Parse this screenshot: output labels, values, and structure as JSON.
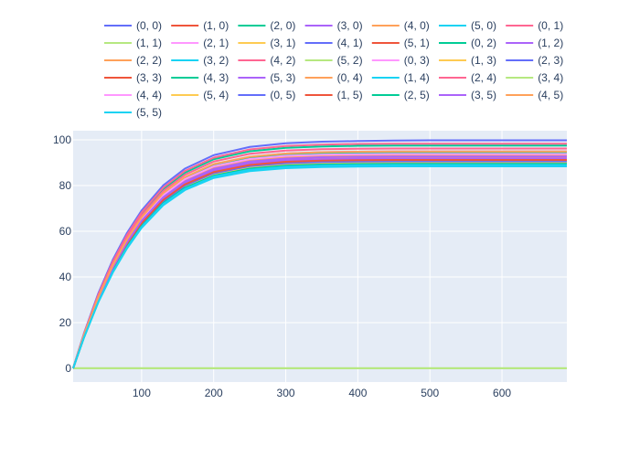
{
  "chart_data": {
    "type": "line",
    "title": "",
    "xlabel": "",
    "ylabel": "",
    "grid": true,
    "legend_position": "top",
    "background_color": "#E5ECF6",
    "grid_color": "#FFFFFF",
    "axis_text_color": "#2a3f5f",
    "xlim": [
      5,
      690
    ],
    "ylim": [
      -6,
      104
    ],
    "x_ticks": [
      100,
      200,
      300,
      400,
      500,
      600
    ],
    "y_ticks": [
      0,
      20,
      40,
      60,
      80,
      100
    ],
    "x": [
      5,
      10,
      20,
      40,
      60,
      80,
      100,
      130,
      160,
      200,
      250,
      300,
      350,
      400,
      450,
      500,
      550,
      600,
      650,
      690
    ],
    "x_tick_labels": [
      "100",
      "200",
      "300",
      "400",
      "500",
      "600"
    ],
    "y_tick_labels": [
      "0",
      "20",
      "40",
      "60",
      "80",
      "100"
    ],
    "series": [
      {
        "name": "(0, 0)",
        "color": "#636efa",
        "values": [
          0.0,
          5.2,
          15.3,
          32.9,
          47.5,
          59.4,
          69.1,
          80.1,
          87.4,
          93.3,
          96.9,
          98.5,
          99.2,
          99.5,
          99.7,
          99.8,
          99.8,
          99.8,
          99.8,
          99.8
        ]
      },
      {
        "name": "(1, 0)",
        "color": "#EF553B",
        "values": [
          0.0,
          4.8,
          14.1,
          30.4,
          44.0,
          55.2,
          64.5,
          74.8,
          81.7,
          87.2,
          90.3,
          91.6,
          92.1,
          92.3,
          92.4,
          92.4,
          92.4,
          92.4,
          92.4,
          92.4
        ]
      },
      {
        "name": "(2, 0)",
        "color": "#00cc96",
        "values": [
          0.0,
          5.0,
          14.8,
          31.9,
          46.1,
          57.9,
          67.6,
          78.4,
          85.6,
          91.5,
          95.0,
          96.5,
          97.1,
          97.4,
          97.5,
          97.5,
          97.5,
          97.5,
          97.5,
          97.5
        ]
      },
      {
        "name": "(3, 0)",
        "color": "#ab63fa",
        "values": [
          0.0,
          4.9,
          14.5,
          31.2,
          45.1,
          56.6,
          66.1,
          76.6,
          83.6,
          89.2,
          92.5,
          94.0,
          94.6,
          94.8,
          94.9,
          94.9,
          94.9,
          94.9,
          94.9,
          94.9
        ]
      },
      {
        "name": "(4, 0)",
        "color": "#FFA15A",
        "values": [
          0.0,
          4.6,
          13.6,
          29.4,
          42.5,
          53.4,
          62.4,
          72.4,
          79.1,
          84.5,
          87.6,
          88.9,
          89.4,
          89.6,
          89.7,
          89.7,
          89.7,
          89.7,
          89.7,
          89.7
        ]
      },
      {
        "name": "(5, 0)",
        "color": "#19d3f3",
        "values": [
          0.0,
          4.7,
          13.9,
          29.9,
          43.2,
          54.2,
          63.4,
          73.5,
          80.3,
          85.8,
          88.9,
          90.2,
          90.7,
          90.9,
          91.0,
          91.0,
          91.0,
          91.0,
          91.0,
          91.0
        ]
      },
      {
        "name": "(0, 1)",
        "color": "#FF6692",
        "values": [
          0.0,
          5.1,
          15.0,
          32.3,
          46.7,
          58.5,
          68.2,
          79.1,
          86.4,
          92.2,
          95.8,
          97.3,
          97.9,
          98.2,
          98.3,
          98.3,
          98.3,
          98.3,
          98.3,
          98.3
        ]
      },
      {
        "name": "(1, 1)",
        "color": "#B6E880",
        "values": [
          0.0,
          0.05,
          0.05,
          0.05,
          0.05,
          0.05,
          0.05,
          0.05,
          0.05,
          0.05,
          0.05,
          0.05,
          0.05,
          0.05,
          0.05,
          0.05,
          0.05,
          0.05,
          0.05,
          0.05
        ]
      },
      {
        "name": "(2, 1)",
        "color": "#FF97FF",
        "values": [
          0.0,
          4.9,
          14.4,
          30.9,
          44.7,
          56.1,
          65.5,
          75.9,
          82.8,
          88.4,
          91.7,
          93.1,
          93.7,
          93.9,
          94.0,
          94.0,
          94.0,
          94.0,
          94.0,
          94.0
        ]
      },
      {
        "name": "(3, 1)",
        "color": "#FECB52",
        "values": [
          0.0,
          4.6,
          13.5,
          29.1,
          42.1,
          52.8,
          61.8,
          71.7,
          78.3,
          83.7,
          86.8,
          88.1,
          88.6,
          88.8,
          88.9,
          88.9,
          88.9,
          88.9,
          88.9,
          88.9
        ]
      },
      {
        "name": "(4, 1)",
        "color": "#636efa",
        "values": [
          0.0,
          4.8,
          14.2,
          30.6,
          44.3,
          55.5,
          64.9,
          75.2,
          82.1,
          87.7,
          90.9,
          92.3,
          92.8,
          93.0,
          93.1,
          93.1,
          93.1,
          93.1,
          93.1,
          93.1
        ]
      },
      {
        "name": "(5, 1)",
        "color": "#EF553B",
        "values": [
          0.0,
          4.7,
          13.8,
          29.8,
          43.0,
          54.0,
          63.1,
          73.2,
          80.0,
          85.4,
          88.5,
          89.8,
          90.3,
          90.5,
          90.6,
          90.6,
          90.6,
          90.6,
          90.6,
          90.6
        ]
      },
      {
        "name": "(0, 2)",
        "color": "#00cc96",
        "values": [
          0.0,
          4.9,
          14.4,
          31.0,
          44.8,
          56.2,
          65.7,
          76.1,
          83.0,
          88.6,
          91.9,
          93.3,
          93.9,
          94.1,
          94.2,
          94.2,
          94.2,
          94.2,
          94.2,
          94.2
        ]
      },
      {
        "name": "(1, 2)",
        "color": "#ab63fa",
        "values": [
          0.0,
          4.8,
          14.0,
          30.3,
          43.8,
          55.0,
          64.2,
          74.4,
          81.2,
          86.7,
          89.9,
          91.2,
          91.7,
          91.9,
          92.0,
          92.0,
          92.0,
          92.0,
          92.0,
          92.0
        ]
      },
      {
        "name": "(2, 2)",
        "color": "#FFA15A",
        "values": [
          0.0,
          4.8,
          14.1,
          30.5,
          44.1,
          55.3,
          64.6,
          74.9,
          81.8,
          87.3,
          90.5,
          91.8,
          92.3,
          92.5,
          92.6,
          92.6,
          92.6,
          92.6,
          92.6,
          92.6
        ]
      },
      {
        "name": "(3, 2)",
        "color": "#19d3f3",
        "values": [
          0.0,
          4.7,
          13.8,
          29.8,
          43.0,
          54.0,
          63.0,
          73.1,
          79.9,
          85.3,
          88.4,
          89.7,
          90.2,
          90.4,
          90.5,
          90.5,
          90.5,
          90.5,
          90.5,
          90.5
        ]
      },
      {
        "name": "(4, 2)",
        "color": "#FF6692",
        "values": [
          0.0,
          5.0,
          14.6,
          31.6,
          45.7,
          57.3,
          66.9,
          77.6,
          84.7,
          90.5,
          93.9,
          95.3,
          95.9,
          96.1,
          96.2,
          96.2,
          96.2,
          96.2,
          96.2,
          96.2
        ]
      },
      {
        "name": "(5, 2)",
        "color": "#B6E880",
        "values": [
          0.0,
          0.05,
          0.05,
          0.05,
          0.05,
          0.05,
          0.05,
          0.05,
          0.05,
          0.05,
          0.05,
          0.05,
          0.05,
          0.05,
          0.05,
          0.05,
          0.05,
          0.05,
          0.05,
          0.05
        ]
      },
      {
        "name": "(0, 3)",
        "color": "#FF97FF",
        "values": [
          0.0,
          4.7,
          13.9,
          30.0,
          43.4,
          54.4,
          63.6,
          73.8,
          80.6,
          86.0,
          89.2,
          90.5,
          91.0,
          91.2,
          91.3,
          91.3,
          91.3,
          91.3,
          91.3,
          91.3
        ]
      },
      {
        "name": "(1, 3)",
        "color": "#FECB52",
        "values": [
          0.0,
          4.7,
          13.7,
          29.6,
          42.8,
          53.7,
          62.8,
          72.8,
          79.5,
          85.0,
          88.0,
          89.3,
          89.8,
          90.0,
          90.1,
          90.1,
          90.1,
          90.1,
          90.1,
          90.1
        ]
      },
      {
        "name": "(2, 3)",
        "color": "#636efa",
        "values": [
          0.0,
          4.7,
          13.9,
          30.0,
          43.3,
          54.3,
          63.5,
          73.7,
          80.4,
          85.9,
          89.0,
          90.3,
          90.8,
          91.0,
          91.1,
          91.1,
          91.1,
          91.1,
          91.1,
          91.1
        ]
      },
      {
        "name": "(3, 3)",
        "color": "#EF553B",
        "values": [
          0.0,
          4.7,
          13.8,
          29.9,
          43.2,
          54.1,
          63.3,
          73.4,
          80.2,
          85.6,
          88.7,
          90.0,
          90.5,
          90.7,
          90.8,
          90.8,
          90.8,
          90.8,
          90.8,
          90.8
        ]
      },
      {
        "name": "(4, 3)",
        "color": "#00cc96",
        "values": [
          0.0,
          4.6,
          13.6,
          29.3,
          42.4,
          53.2,
          62.2,
          72.2,
          78.8,
          84.2,
          87.3,
          88.6,
          89.1,
          89.3,
          89.4,
          89.4,
          89.4,
          89.4,
          89.4,
          89.4
        ]
      },
      {
        "name": "(5, 3)",
        "color": "#ab63fa",
        "values": [
          0.0,
          4.8,
          14.0,
          30.2,
          43.7,
          54.8,
          64.0,
          74.2,
          81.1,
          86.6,
          89.7,
          91.0,
          91.5,
          91.7,
          91.8,
          91.8,
          91.8,
          91.8,
          91.8,
          91.8
        ]
      },
      {
        "name": "(0, 4)",
        "color": "#FFA15A",
        "values": [
          0.0,
          4.8,
          14.2,
          30.7,
          44.4,
          55.7,
          65.0,
          75.4,
          82.3,
          87.9,
          91.1,
          92.5,
          93.0,
          93.2,
          93.3,
          93.3,
          93.3,
          93.3,
          93.3,
          93.3
        ]
      },
      {
        "name": "(1, 4)",
        "color": "#19d3f3",
        "values": [
          0.0,
          4.6,
          13.4,
          29.0,
          41.9,
          52.6,
          61.5,
          71.4,
          78.0,
          83.3,
          86.3,
          87.6,
          88.1,
          88.3,
          88.4,
          88.4,
          88.4,
          88.4,
          88.4,
          88.4
        ]
      },
      {
        "name": "(2, 4)",
        "color": "#FF6692",
        "values": [
          0.0,
          4.7,
          13.8,
          29.8,
          43.1,
          54.1,
          63.2,
          73.3,
          80.1,
          85.5,
          88.6,
          89.9,
          90.4,
          90.6,
          90.7,
          90.7,
          90.7,
          90.7,
          90.7,
          90.7
        ]
      },
      {
        "name": "(3, 4)",
        "color": "#B6E880",
        "values": [
          0.0,
          4.7,
          13.9,
          29.9,
          43.3,
          54.3,
          63.4,
          73.6,
          80.3,
          85.8,
          88.9,
          90.2,
          90.7,
          90.9,
          91.0,
          91.0,
          91.0,
          91.0,
          91.0,
          91.0
        ]
      },
      {
        "name": "(4, 4)",
        "color": "#FF97FF",
        "values": [
          0.0,
          4.9,
          14.3,
          30.9,
          44.7,
          56.0,
          65.4,
          75.8,
          82.8,
          88.4,
          91.6,
          93.0,
          93.5,
          93.7,
          93.8,
          93.8,
          93.8,
          93.8,
          93.8,
          93.8
        ]
      },
      {
        "name": "(5, 4)",
        "color": "#FECB52",
        "values": [
          0.0,
          4.7,
          13.8,
          29.8,
          43.0,
          54.0,
          63.1,
          73.2,
          79.9,
          85.4,
          88.5,
          89.8,
          90.3,
          90.5,
          90.6,
          90.6,
          90.6,
          90.6,
          90.6,
          90.6
        ]
      },
      {
        "name": "(0, 5)",
        "color": "#636efa",
        "values": [
          0.0,
          4.7,
          13.8,
          29.8,
          43.1,
          54.0,
          63.1,
          73.2,
          80.0,
          85.4,
          88.5,
          89.8,
          90.3,
          90.5,
          90.6,
          90.6,
          90.6,
          90.6,
          90.6,
          90.6
        ]
      },
      {
        "name": "(1, 5)",
        "color": "#EF553B",
        "values": [
          0.0,
          4.7,
          13.9,
          30.0,
          43.3,
          54.3,
          63.5,
          73.7,
          80.5,
          85.9,
          89.0,
          90.4,
          90.9,
          91.1,
          91.2,
          91.2,
          91.2,
          91.2,
          91.2,
          91.2
        ]
      },
      {
        "name": "(2, 5)",
        "color": "#00cc96",
        "values": [
          0.0,
          4.6,
          13.6,
          29.4,
          42.5,
          53.3,
          62.3,
          72.3,
          79.0,
          84.3,
          87.4,
          88.7,
          89.2,
          89.4,
          89.5,
          89.5,
          89.5,
          89.5,
          89.5,
          89.5
        ]
      },
      {
        "name": "(3, 5)",
        "color": "#ab63fa",
        "values": [
          0.0,
          4.8,
          14.1,
          30.5,
          44.1,
          55.3,
          64.6,
          74.9,
          81.8,
          87.3,
          90.5,
          91.8,
          92.4,
          92.6,
          92.7,
          92.7,
          92.7,
          92.7,
          92.7,
          92.7
        ]
      },
      {
        "name": "(4, 5)",
        "color": "#FFA15A",
        "values": [
          0.0,
          4.9,
          14.5,
          31.2,
          45.1,
          56.6,
          66.1,
          76.7,
          83.7,
          89.4,
          92.6,
          94.0,
          94.6,
          94.8,
          94.9,
          94.9,
          94.9,
          94.9,
          94.9,
          94.9
        ]
      },
      {
        "name": "(5, 5)",
        "color": "#19d3f3",
        "values": [
          0.0,
          4.6,
          13.5,
          29.2,
          42.2,
          53.0,
          61.9,
          71.9,
          78.5,
          83.9,
          86.9,
          88.2,
          88.7,
          88.9,
          89.0,
          89.0,
          89.0,
          89.0,
          89.0,
          89.0
        ]
      }
    ]
  }
}
